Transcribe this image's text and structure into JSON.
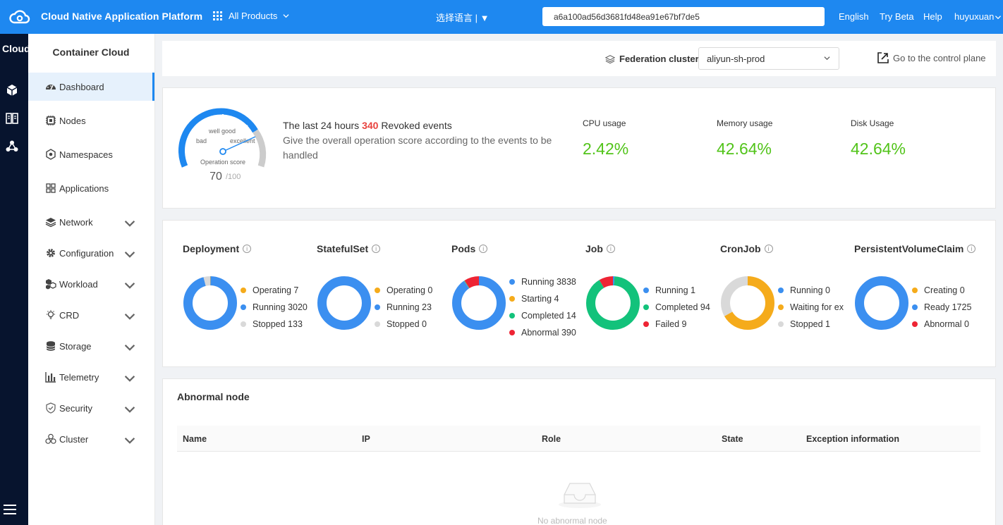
{
  "topbar": {
    "brand": "Cloud Native Application Platform",
    "all_products": "All Products",
    "language_select": "选择语言",
    "search_value": "a6a100ad56d3681fd48ea91e67bf7de5",
    "links": [
      "English",
      "Try Beta",
      "Help",
      "huyuxuan"
    ]
  },
  "rail": {
    "title": "Cloud"
  },
  "sidebar": {
    "title": "Container Cloud",
    "items": [
      {
        "label": "Dashboard",
        "icon": "dashboard-icon",
        "active": true
      },
      {
        "label": "Nodes",
        "icon": "chip-icon"
      },
      {
        "label": "Namespaces",
        "icon": "namespace-icon"
      },
      {
        "label": "Applications",
        "icon": "apps-grid-icon"
      },
      {
        "label": "Network",
        "icon": "layers-icon",
        "expandable": true
      },
      {
        "label": "Configuration",
        "icon": "gear-icon",
        "expandable": true
      },
      {
        "label": "Workload",
        "icon": "cubes-icon",
        "expandable": true
      },
      {
        "label": "CRD",
        "icon": "bulb-icon",
        "expandable": true
      },
      {
        "label": "Storage",
        "icon": "database-icon",
        "expandable": true
      },
      {
        "label": "Telemetry",
        "icon": "bar-chart-icon",
        "expandable": true
      },
      {
        "label": "Security",
        "icon": "shield-icon",
        "expandable": true
      },
      {
        "label": "Cluster",
        "icon": "cluster-icon",
        "expandable": true
      }
    ]
  },
  "header": {
    "federation_label": "Federation cluster",
    "cluster_value": "aliyun-sh-prod",
    "control_plane": "Go to the control plane"
  },
  "score": {
    "gauge_bad": "bad",
    "gauge_good": "well good",
    "gauge_excellent": "excellent",
    "gauge_caption": "Operation score",
    "value": "70",
    "max": "/100",
    "events_prefix": "The last 24 hours",
    "events_count": "340",
    "events_suffix": "Revoked events",
    "description": "Give the overall operation score according to the events to be handled"
  },
  "metrics": [
    {
      "label": "CPU usage",
      "value": "2.42%"
    },
    {
      "label": "Memory usage",
      "value": "42.64%"
    },
    {
      "label": "Disk Usage",
      "value": "42.64%"
    }
  ],
  "colors": {
    "blue": "#3b8ff0",
    "orange": "#f5ab1b",
    "grey": "#d9d9d9",
    "green": "#13c27b",
    "red": "#ee2434"
  },
  "chart_data": [
    {
      "type": "pie",
      "title": "Deployment",
      "categories": [
        "Operating",
        "Running",
        "Stopped"
      ],
      "values": [
        7,
        3020,
        133
      ],
      "legend": [
        "Operating 7",
        "Running 3020",
        "Stopped 133"
      ],
      "colors": [
        "orange",
        "blue",
        "grey"
      ]
    },
    {
      "type": "pie",
      "title": "StatefulSet",
      "categories": [
        "Operating",
        "Running",
        "Stopped"
      ],
      "values": [
        0,
        23,
        0
      ],
      "legend": [
        "Operating 0",
        "Running 23",
        "Stopped 0"
      ],
      "colors": [
        "orange",
        "blue",
        "grey"
      ]
    },
    {
      "type": "pie",
      "title": "Pods",
      "categories": [
        "Running",
        "Starting",
        "Completed",
        "Abnormal"
      ],
      "values": [
        3838,
        4,
        14,
        390
      ],
      "legend": [
        "Running 3838",
        "Starting 4",
        "Completed 14",
        "Abnormal 390"
      ],
      "colors": [
        "blue",
        "orange",
        "green",
        "red"
      ]
    },
    {
      "type": "pie",
      "title": "Job",
      "categories": [
        "Running",
        "Completed",
        "Failed"
      ],
      "values": [
        1,
        94,
        9
      ],
      "legend": [
        "Running 1",
        "Completed 94",
        "Failed 9"
      ],
      "colors": [
        "blue",
        "green",
        "red"
      ]
    },
    {
      "type": "pie",
      "title": "CronJob",
      "categories": [
        "Running",
        "Waiting for ex",
        "Stopped"
      ],
      "values": [
        0,
        2,
        1
      ],
      "legend": [
        "Running 0",
        "Waiting for ex",
        "Stopped 1"
      ],
      "colors": [
        "blue",
        "orange",
        "grey"
      ]
    },
    {
      "type": "pie",
      "title": "PersistentVolumeClaim",
      "categories": [
        "Creating",
        "Ready",
        "Abnormal"
      ],
      "values": [
        0,
        1725,
        0
      ],
      "legend": [
        "Creating 0",
        "Ready 1725",
        "Abnormal 0"
      ],
      "colors": [
        "orange",
        "blue",
        "red"
      ]
    }
  ],
  "abnormal": {
    "title": "Abnormal node",
    "columns": [
      "Name",
      "IP",
      "Role",
      "State",
      "Exception information"
    ],
    "empty_text": "No abnormal node"
  }
}
